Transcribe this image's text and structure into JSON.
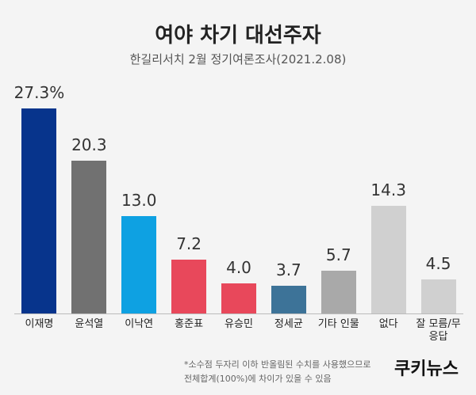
{
  "chart_data": {
    "type": "bar",
    "title": "여야 차기 대선주자",
    "subtitle": "한길리서치 2월 정기여론조사(2021.2.08)",
    "categories": [
      "이재명",
      "윤석열",
      "이낙연",
      "홍준표",
      "유승민",
      "정세균",
      "기타 인물",
      "없다",
      "잘 모름/무응답"
    ],
    "values": [
      27.3,
      20.3,
      13.0,
      7.2,
      4.0,
      3.7,
      5.7,
      14.3,
      4.5
    ],
    "value_labels": [
      "27.3%",
      "20.3",
      "13.0",
      "7.2",
      "4.0",
      "3.7",
      "5.7",
      "14.3",
      "4.5"
    ],
    "colors": [
      "#07348c",
      "#717171",
      "#0ea1e2",
      "#e8485b",
      "#e8485b",
      "#3d7398",
      "#a9a9a9",
      "#d0d0d0",
      "#d0d0d0"
    ],
    "notes": [
      "*소수점 두자리 이하 반올림된 수치를 사용했으므로",
      "전체합계(100%)에 차이가 있을 수 있음"
    ],
    "source": "쿠키뉴스"
  }
}
